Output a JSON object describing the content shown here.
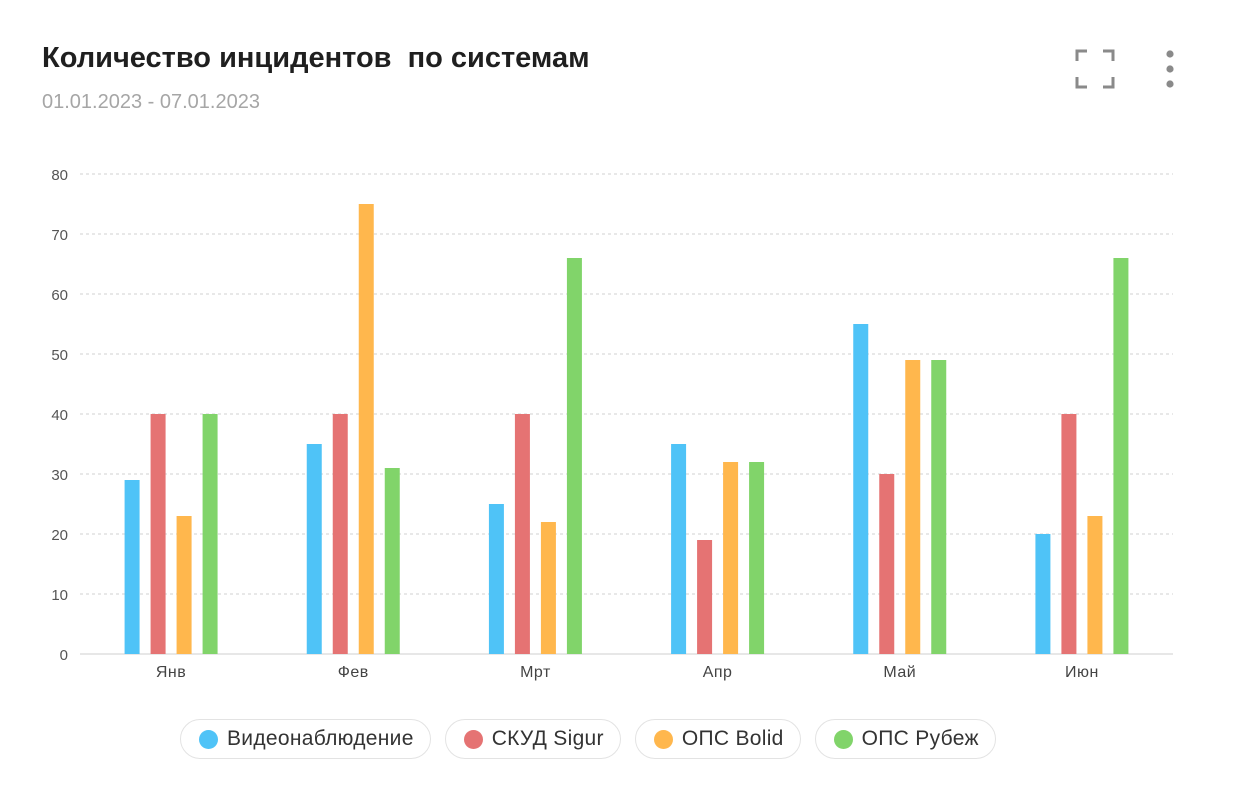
{
  "header": {
    "title": "Количество инцидентов  по системам",
    "subtitle": "01.01.2023 - 07.01.2023"
  },
  "icons": {
    "fullscreen": "fullscreen-icon",
    "menu": "more-vertical-icon"
  },
  "chart_data": {
    "type": "bar",
    "title": "Количество инцидентов  по системам",
    "subtitle": "01.01.2023 - 07.01.2023",
    "xlabel": "",
    "ylabel": "",
    "categories": [
      "Янв",
      "Фев",
      "Мрт",
      "Апр",
      "Май",
      "Июн"
    ],
    "ylim": [
      0,
      80
    ],
    "yticks": [
      0,
      10,
      20,
      30,
      40,
      50,
      60,
      70,
      80
    ],
    "grid": true,
    "legend_position": "bottom",
    "series": [
      {
        "name": "Видеонаблюдение",
        "color": "#4fc3f7",
        "values": [
          29,
          35,
          25,
          35,
          55,
          20
        ]
      },
      {
        "name": "СКУД Sigur",
        "color": "#e57373",
        "values": [
          40,
          40,
          40,
          19,
          30,
          40
        ]
      },
      {
        "name": "ОПС Bolid",
        "color": "#ffb74d",
        "values": [
          23,
          75,
          22,
          32,
          49,
          23
        ]
      },
      {
        "name": "ОПС Рубеж",
        "color": "#81d46a",
        "values": [
          40,
          31,
          66,
          32,
          49,
          66
        ]
      }
    ]
  }
}
